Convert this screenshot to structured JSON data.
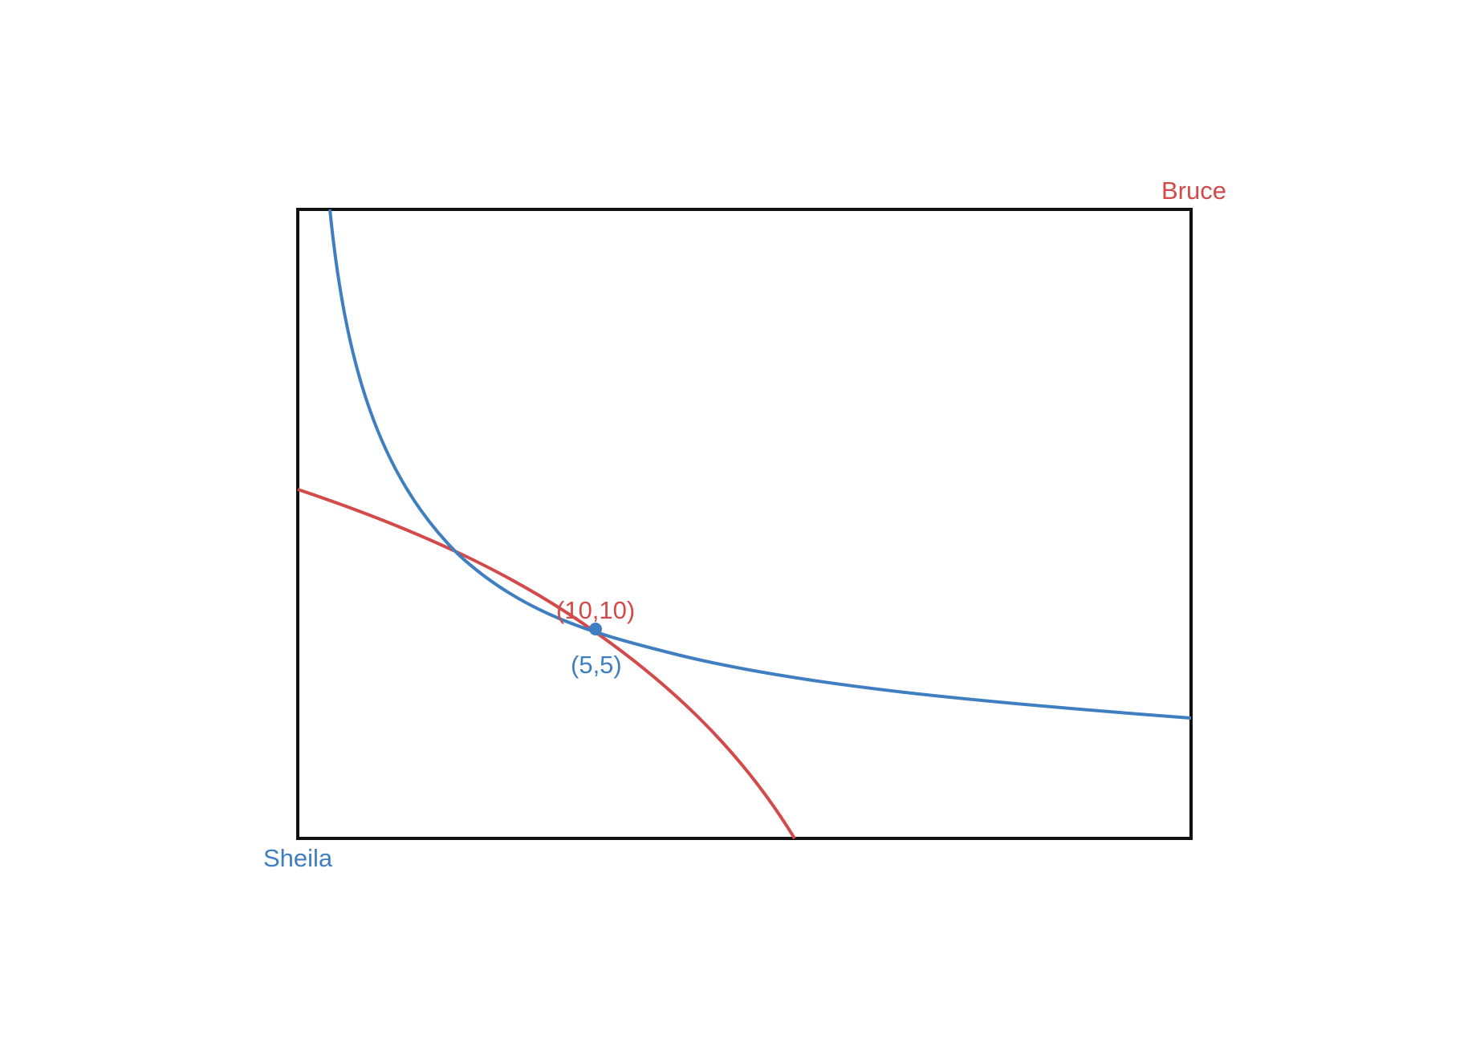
{
  "labels": {
    "bruce_origin": "Bruce",
    "sheila_origin": "Sheila",
    "endowment_bruce": "(10,10)",
    "endowment_sheila": "(5,5)"
  },
  "colors": {
    "box": "#111111",
    "sheila": "#3f7fc1",
    "bruce": "#d24a4a"
  },
  "diagram": {
    "type": "edgeworth-box",
    "curves": [
      {
        "owner": "sheila",
        "shape": "convex indifference curve through endowment"
      },
      {
        "owner": "bruce",
        "shape": "indifference curve through endowment"
      }
    ],
    "endowment_marker": true
  }
}
